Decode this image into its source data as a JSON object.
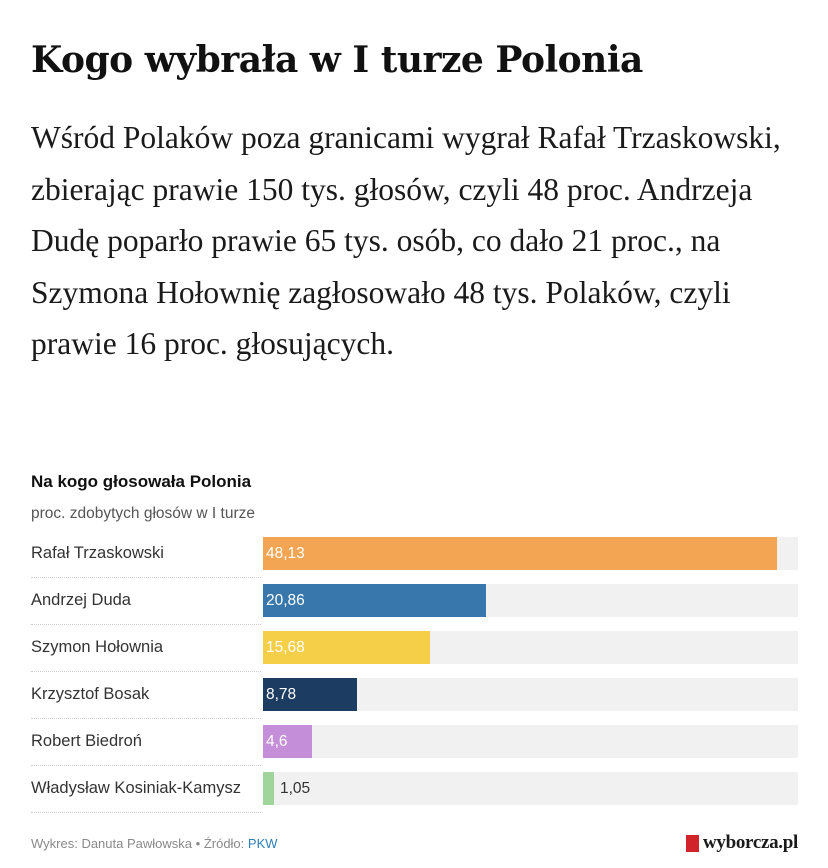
{
  "headline": "Kogo wybrała w I turze Polonia",
  "lead": "Wśród Polaków poza granicami wygrał Rafał Trzaskowski, zbierając prawie 150 tys. głosów, czyli 48 proc. Andrzeja Dudę poparło prawie 65 tys. osób, co dało 21 proc., na Szymona Hołownię zagłosowało 48 tys. Polaków, czyli prawie 16 proc. głosujących.",
  "chart_data": {
    "type": "bar",
    "orientation": "horizontal",
    "title": "Na kogo głosowała Polonia",
    "subtitle": "proc. zdobytych głosów w I turze",
    "xlim": [
      0,
      50
    ],
    "categories": [
      "Rafał Trzaskowski",
      "Andrzej Duda",
      "Szymon Hołownia",
      "Krzysztof Bosak",
      "Robert Biedroń",
      "Władysław Kosiniak-Kamysz"
    ],
    "values": [
      48.13,
      20.86,
      15.68,
      8.78,
      4.6,
      1.05
    ],
    "value_labels": [
      "48,13",
      "20,86",
      "15,68",
      "8,78",
      "4,6",
      "1,05"
    ],
    "colors": [
      "#f4a553",
      "#3777ac",
      "#f6cf48",
      "#1c3d61",
      "#c48ed8",
      "#9fd49b"
    ],
    "track_color": "#f1f1f1"
  },
  "footer": {
    "author": "Wykres: Danuta Pawłowska",
    "separator": "•",
    "source_label": "Źródło:",
    "source": "PKW"
  },
  "brand": {
    "name": "wyborcza.pl",
    "color": "#d1232a"
  }
}
